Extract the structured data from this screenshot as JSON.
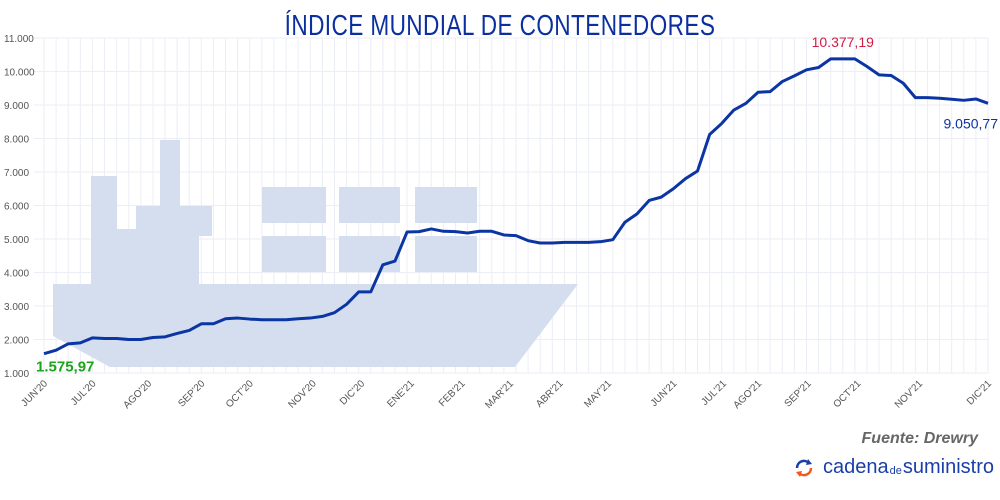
{
  "chart_data": {
    "type": "line",
    "title": "ÍNDICE MUNDIAL DE CONTENEDORES",
    "ylim": [
      1000,
      11000
    ],
    "y_ticks": [
      "1.000",
      "2.000",
      "3.000",
      "4.000",
      "5.000",
      "6.000",
      "7.000",
      "8.000",
      "9.000",
      "10.000",
      "11.000"
    ],
    "y_tick_values": [
      1000,
      2000,
      3000,
      4000,
      5000,
      6000,
      7000,
      8000,
      9000,
      10000,
      11000
    ],
    "grid": true,
    "x_ticks": [
      {
        "label": "JUN'20",
        "at_point": 0
      },
      {
        "label": "JUL'20",
        "at_point": 4
      },
      {
        "label": "AGO'20",
        "at_point": 8.6
      },
      {
        "label": "SEP'20",
        "at_point": 13
      },
      {
        "label": "OCT'20",
        "at_point": 17
      },
      {
        "label": "NOV'20",
        "at_point": 22.2
      },
      {
        "label": "DIC'20",
        "at_point": 26.2
      },
      {
        "label": "ENE'21",
        "at_point": 30.3
      },
      {
        "label": "FEB'21",
        "at_point": 34.5
      },
      {
        "label": "MAR'21",
        "at_point": 38.5
      },
      {
        "label": "ABR'21",
        "at_point": 42.6
      },
      {
        "label": "MAY'21",
        "at_point": 46.6
      },
      {
        "label": "JUN'21",
        "at_point": 52
      },
      {
        "label": "JUL'21",
        "at_point": 56.1
      },
      {
        "label": "AGO'21",
        "at_point": 59
      },
      {
        "label": "SEP'21",
        "at_point": 63.1
      },
      {
        "label": "OCT'21",
        "at_point": 67.2
      },
      {
        "label": "NOV'21",
        "at_point": 72.3
      },
      {
        "label": "DIC'21",
        "at_point": 78
      }
    ],
    "series": [
      {
        "color": "#0a35a3",
        "values": [
          1576,
          1680,
          1870,
          1900,
          2050,
          2030,
          2030,
          2000,
          2000,
          2060,
          2080,
          2180,
          2270,
          2470,
          2470,
          2620,
          2640,
          2610,
          2590,
          2590,
          2590,
          2620,
          2640,
          2690,
          2800,
          3050,
          3420,
          3420,
          4230,
          4340,
          5210,
          5220,
          5300,
          5230,
          5220,
          5180,
          5230,
          5230,
          5120,
          5100,
          4950,
          4880,
          4880,
          4900,
          4900,
          4900,
          4920,
          4980,
          5500,
          5750,
          6150,
          6250,
          6500,
          6800,
          7030,
          8120,
          8450,
          8850,
          9050,
          9380,
          9400,
          9700,
          9870,
          10050,
          10120,
          10377,
          10377,
          10377,
          10150,
          9900,
          9880,
          9650,
          9220,
          9220,
          9200,
          9170,
          9140,
          9180,
          9051
        ]
      }
    ],
    "annotations": [
      {
        "text": "1.575,97",
        "color": "#1aa51a",
        "at_point": 0
      },
      {
        "text": "10.377,19",
        "color": "#d01c44",
        "at_point": 66
      },
      {
        "text": "9.050,77",
        "color": "#0a35a3",
        "at_point": 78
      }
    ]
  },
  "source": "Fuente: Drewry",
  "brand": {
    "part1": "cadena",
    "part2": "de",
    "part3": "suministro"
  },
  "colors": {
    "title": "#0b2fa0",
    "ship": "#d5deef",
    "grid": "#eceef6"
  }
}
